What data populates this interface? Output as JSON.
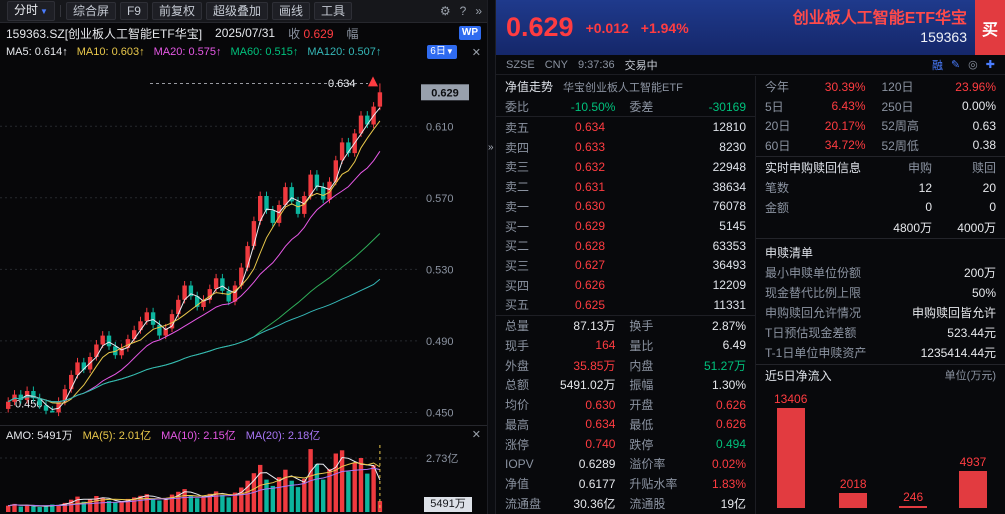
{
  "icons": {
    "caret_down": "▼",
    "gear": "⚙",
    "help": "?",
    "chevrons": "»",
    "close": "✕",
    "pen": "✎",
    "eye": "◎",
    "plus": "✚"
  },
  "left": {
    "toolbar": {
      "period": "分时",
      "items": [
        "综合屏",
        "F9",
        "前复权",
        "超级叠加",
        "画线",
        "工具"
      ]
    },
    "info": {
      "symbol": "159363.SZ[创业板人工智能ETF华宝]",
      "date": "2025/07/31",
      "close_label": "收",
      "close_value": "0.629",
      "range_label": "幅",
      "wp": "WP"
    },
    "ma": {
      "items": [
        {
          "t": "MA5: 0.614↑",
          "c": "w"
        },
        {
          "t": "MA10: 0.603↑",
          "c": "y"
        },
        {
          "t": "MA20: 0.575↑",
          "c": "m"
        },
        {
          "t": "MA60: 0.515↑",
          "c": "g"
        },
        {
          "t": "MA120: 0.507↑",
          "c": "c"
        }
      ],
      "period_badge": "6日"
    },
    "vol_header": {
      "items": [
        {
          "t": "AMO: 5491万",
          "c": "w"
        },
        {
          "t": "MA(5): 2.01亿",
          "c": "y"
        },
        {
          "t": "MA(10): 2.15亿",
          "c": "m"
        },
        {
          "t": "MA(20): 2.18亿",
          "c": "p"
        }
      ]
    }
  },
  "right": {
    "header": {
      "price": "0.629",
      "change": "+0.012",
      "pct": "+1.94%",
      "title": "创业板人工智能ETF华宝",
      "code": "159363",
      "buy": "买"
    },
    "status": {
      "exchange": "SZSE",
      "currency": "CNY",
      "time": "9:37:36",
      "state": "交易中",
      "margin": "融"
    },
    "fund": {
      "label": "净值走势",
      "name": "华宝创业板人工智能ETF"
    },
    "order_book": {
      "weibi_label": "委比",
      "weibi": "-10.50%",
      "weicha_label": "委差",
      "weicha": "-30169",
      "rows": [
        [
          "卖五",
          "0.634",
          "12810"
        ],
        [
          "卖四",
          "0.633",
          "8230"
        ],
        [
          "卖三",
          "0.632",
          "22948"
        ],
        [
          "卖二",
          "0.631",
          "38634"
        ],
        [
          "卖一",
          "0.630",
          "76078"
        ],
        [
          "买一",
          "0.629",
          "5145"
        ],
        [
          "买二",
          "0.628",
          "63353"
        ],
        [
          "买三",
          "0.627",
          "36493"
        ],
        [
          "买四",
          "0.626",
          "12209"
        ],
        [
          "买五",
          "0.625",
          "11331"
        ]
      ]
    },
    "stats": [
      [
        "总量",
        "87.13万",
        "w",
        "换手",
        "2.87%",
        "w"
      ],
      [
        "现手",
        "164",
        "r",
        "量比",
        "6.49",
        "w"
      ],
      [
        "外盘",
        "35.85万",
        "r",
        "内盘",
        "51.27万",
        "g"
      ],
      [
        "总额",
        "5491.02万",
        "w",
        "振幅",
        "1.30%",
        "w"
      ],
      [
        "均价",
        "0.630",
        "r",
        "开盘",
        "0.626",
        "r"
      ],
      [
        "最高",
        "0.634",
        "r",
        "最低",
        "0.626",
        "r"
      ],
      [
        "涨停",
        "0.740",
        "r",
        "跌停",
        "0.494",
        "g"
      ],
      [
        "IOPV",
        "0.6289",
        "w",
        "溢价率",
        "0.02%",
        "r"
      ],
      [
        "净值",
        "0.6177",
        "w",
        "升贴水率",
        "1.83%",
        "r"
      ],
      [
        "流通盘",
        "30.36亿",
        "w",
        "流通股",
        "19亿",
        "w"
      ]
    ],
    "periods": [
      [
        "今年",
        "30.39%",
        "r",
        "120日",
        "23.96%",
        "r"
      ],
      [
        "5日",
        "6.43%",
        "r",
        "250日",
        "0.00%",
        "w"
      ],
      [
        "20日",
        "20.17%",
        "r",
        "52周高",
        "0.63",
        "w"
      ],
      [
        "60日",
        "34.72%",
        "r",
        "52周低",
        "0.38",
        "w"
      ]
    ],
    "realtime": {
      "title": "实时申购赎回信息",
      "col1": "申购",
      "col2": "赎回",
      "rows": [
        [
          "笔数",
          "12",
          "20"
        ],
        [
          "金额",
          "0",
          "0"
        ],
        [
          "",
          "4800万",
          "4000万"
        ]
      ]
    },
    "redeem": {
      "title": "申赎清单",
      "rows": [
        [
          "最小申赎单位份额",
          "200万"
        ],
        [
          "现金替代比例上限",
          "50%"
        ],
        [
          "申购赎回允许情况",
          "申购赎回皆允许"
        ],
        [
          "T日预估现金差额",
          "523.44元"
        ],
        [
          "T-1日单位申赎资产",
          "1235414.44元"
        ]
      ]
    },
    "flow": {
      "title": "近5日净流入",
      "unit": "单位(万元)"
    }
  },
  "chart_data": [
    {
      "type": "candlestick",
      "title": "159363 创业板人工智能ETF华宝 日K(6日)",
      "ylim": [
        0.443,
        0.6465
      ],
      "gridlines": [
        0.61,
        0.57,
        0.53,
        0.49,
        0.45
      ],
      "current": 0.629,
      "high_marker": 0.634,
      "low_marker": 0.45,
      "low_index": 7,
      "ma_legend": {
        "MA5": 0.614,
        "MA10": 0.603,
        "MA20": 0.575,
        "MA60": 0.515,
        "MA120": 0.507
      },
      "closes": [
        0.456,
        0.46,
        0.457,
        0.462,
        0.458,
        0.454,
        0.451,
        0.45,
        0.456,
        0.463,
        0.471,
        0.478,
        0.474,
        0.481,
        0.488,
        0.493,
        0.487,
        0.482,
        0.486,
        0.491,
        0.496,
        0.501,
        0.506,
        0.499,
        0.493,
        0.497,
        0.505,
        0.513,
        0.521,
        0.515,
        0.509,
        0.513,
        0.519,
        0.525,
        0.518,
        0.512,
        0.521,
        0.531,
        0.543,
        0.557,
        0.571,
        0.563,
        0.556,
        0.566,
        0.576,
        0.568,
        0.561,
        0.571,
        0.583,
        0.576,
        0.569,
        0.579,
        0.591,
        0.601,
        0.595,
        0.606,
        0.616,
        0.611,
        0.621,
        0.629
      ]
    },
    {
      "type": "bar",
      "name": "成交量",
      "unit": "万",
      "grid_label": "2.73亿",
      "grid_value": 27300,
      "current_label": "5491万",
      "values": [
        3200,
        4100,
        2800,
        3600,
        2900,
        2600,
        3100,
        3800,
        3400,
        4600,
        6200,
        7800,
        5200,
        6400,
        8100,
        7200,
        5600,
        4800,
        5400,
        6600,
        7400,
        8200,
        9000,
        6800,
        5800,
        6200,
        8800,
        10200,
        11600,
        8400,
        7000,
        7600,
        9200,
        10400,
        8600,
        7400,
        9800,
        12400,
        15800,
        19600,
        23800,
        16400,
        13200,
        17600,
        21400,
        15800,
        12600,
        16800,
        31800,
        24200,
        16400,
        21800,
        29600,
        31200,
        20600,
        24800,
        27300,
        19400,
        23600,
        5491
      ]
    },
    {
      "type": "bar",
      "name": "近5日净流入",
      "unit": "万元",
      "values": [
        13406,
        2018,
        246,
        4937
      ],
      "max": 13406,
      "color": "#e23b40"
    }
  ]
}
